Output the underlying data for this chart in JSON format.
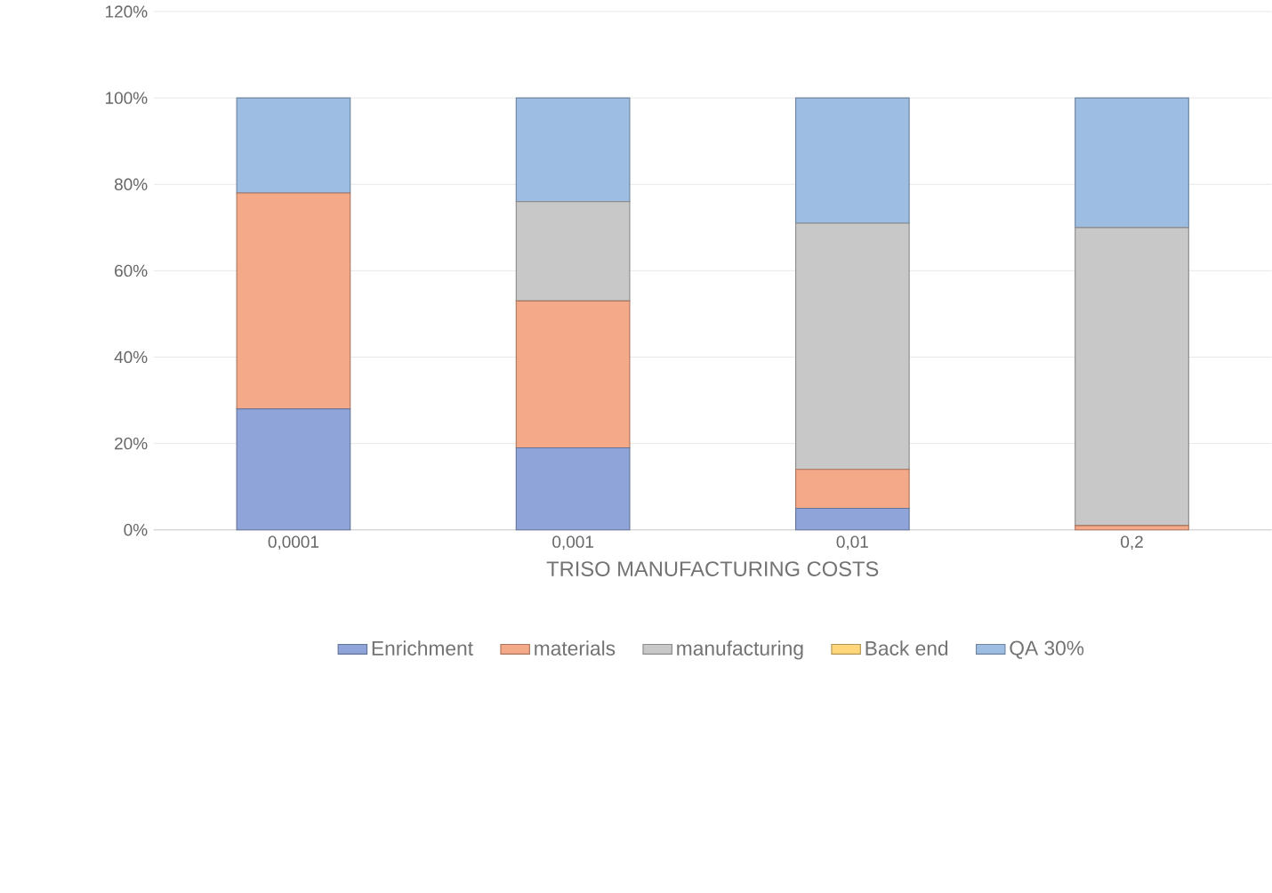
{
  "chart_data": {
    "type": "bar",
    "stacked": true,
    "xlabel": "TRISO  MANUFACTURING COSTS",
    "categories": [
      "0,0001",
      "0,001",
      "0,01",
      "0,2"
    ],
    "series": [
      {
        "name": "Enrichment",
        "color": "#8fa5d9",
        "values": [
          28,
          19,
          5,
          0
        ]
      },
      {
        "name": "materials",
        "color": "#f4a988",
        "values": [
          50,
          34,
          9,
          1
        ]
      },
      {
        "name": "manufacturing",
        "color": "#c8c8c8",
        "values": [
          0,
          23,
          57,
          69
        ]
      },
      {
        "name": "Back end",
        "color": "#ffd77a",
        "values": [
          0,
          0,
          0,
          0
        ]
      },
      {
        "name": "QA 30%",
        "color": "#9dbde3",
        "values": [
          22,
          24,
          29,
          30
        ]
      }
    ],
    "ylim": [
      0,
      120
    ],
    "yticks": [
      {
        "value": 0,
        "label": "0%"
      },
      {
        "value": 20,
        "label": "20%"
      },
      {
        "value": 40,
        "label": "40%"
      },
      {
        "value": 60,
        "label": "60%"
      },
      {
        "value": 80,
        "label": "80%"
      },
      {
        "value": 100,
        "label": "100%"
      },
      {
        "value": 120,
        "label": "120%"
      }
    ],
    "grid": "y",
    "legend": "bottom"
  }
}
